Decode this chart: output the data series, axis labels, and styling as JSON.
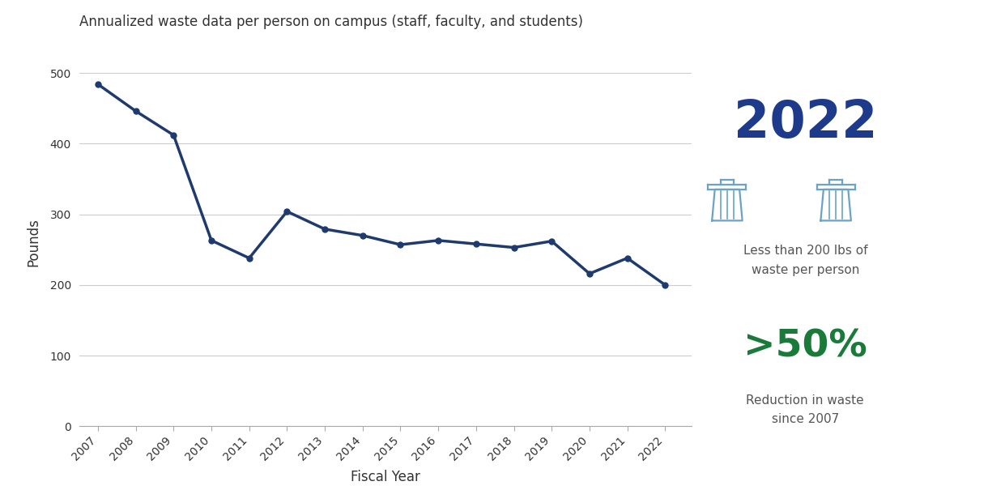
{
  "years": [
    2007,
    2008,
    2009,
    2010,
    2011,
    2012,
    2013,
    2014,
    2015,
    2016,
    2017,
    2018,
    2019,
    2020,
    2021,
    2022
  ],
  "values": [
    484,
    446,
    412,
    263,
    238,
    304,
    279,
    270,
    257,
    263,
    258,
    253,
    262,
    216,
    238,
    200
  ],
  "line_color": "#1e3a6e",
  "marker_color": "#1e3a6e",
  "title": "Annualized waste data per person on campus (staff, faculty, and students)",
  "xlabel": "Fiscal Year",
  "ylabel": "Pounds",
  "ylim": [
    0,
    520
  ],
  "yticks": [
    0,
    100,
    200,
    300,
    400,
    500
  ],
  "background_color": "#ffffff",
  "grid_color": "#cccccc",
  "title_fontsize": 12,
  "axis_label_fontsize": 12,
  "tick_fontsize": 10,
  "anno_year": "2022",
  "anno_year_color": "#1e3a8a",
  "anno_year_fontsize": 46,
  "anno_lbs_text": "Less than 200 lbs of\nwaste per person",
  "anno_lbs_color": "#555555",
  "anno_lbs_fontsize": 11,
  "anno_pct_text": ">50%",
  "anno_pct_color": "#1a7a3a",
  "anno_pct_fontsize": 34,
  "anno_reduction_text": "Reduction in waste\nsince 2007",
  "anno_reduction_color": "#555555",
  "anno_reduction_fontsize": 11,
  "trash_icon_color": "#6ba3c8"
}
